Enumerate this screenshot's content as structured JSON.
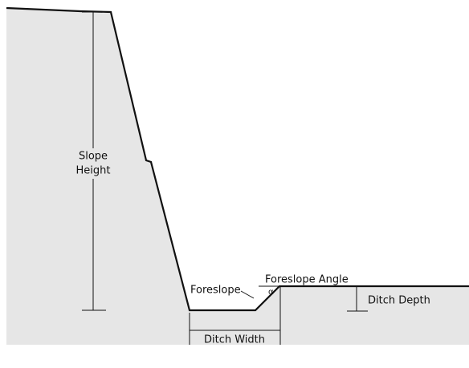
{
  "slope_height": {
    "line1": "Slope",
    "line2": "Height"
  },
  "foreslope": "Foreslope",
  "foreslope_angle": "Foreslope Angle",
  "alpha": "α",
  "ditch_width": "Ditch Width",
  "ditch_depth": "Ditch Depth"
}
